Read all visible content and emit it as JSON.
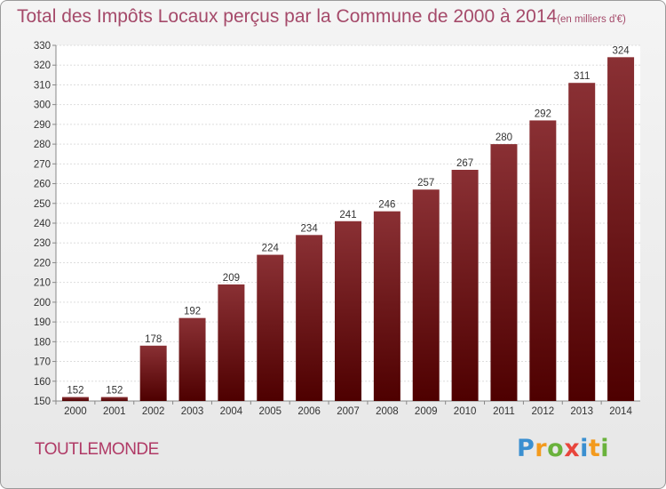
{
  "header": {
    "title": "Total des Impôts Locaux perçus par la Commune de 2000 à 2014",
    "unit": "(en milliers d'€)"
  },
  "footer": {
    "commune": "TOUTLEMONDE",
    "logo_letters": [
      "P",
      "r",
      "o",
      "x",
      "i",
      "t",
      "i"
    ],
    "logo_colors": [
      "#3a8fd0",
      "#f39a1d",
      "#6ab23c",
      "#e8453c",
      "#3a8fd0",
      "#f39a1d",
      "#6ab23c"
    ]
  },
  "chart_data": {
    "type": "bar",
    "categories": [
      "2000",
      "2001",
      "2002",
      "2003",
      "2004",
      "2005",
      "2006",
      "2007",
      "2008",
      "2009",
      "2010",
      "2011",
      "2012",
      "2013",
      "2014"
    ],
    "values": [
      152,
      152,
      178,
      192,
      209,
      224,
      234,
      241,
      246,
      257,
      267,
      280,
      292,
      311,
      324
    ],
    "ylim": [
      150,
      330
    ],
    "yticks": [
      150,
      160,
      170,
      180,
      190,
      200,
      210,
      220,
      230,
      240,
      250,
      260,
      270,
      280,
      290,
      300,
      310,
      320,
      330
    ],
    "grid": true,
    "bar_color_top": "#8a3034",
    "bar_color_bottom": "#4e0000"
  }
}
